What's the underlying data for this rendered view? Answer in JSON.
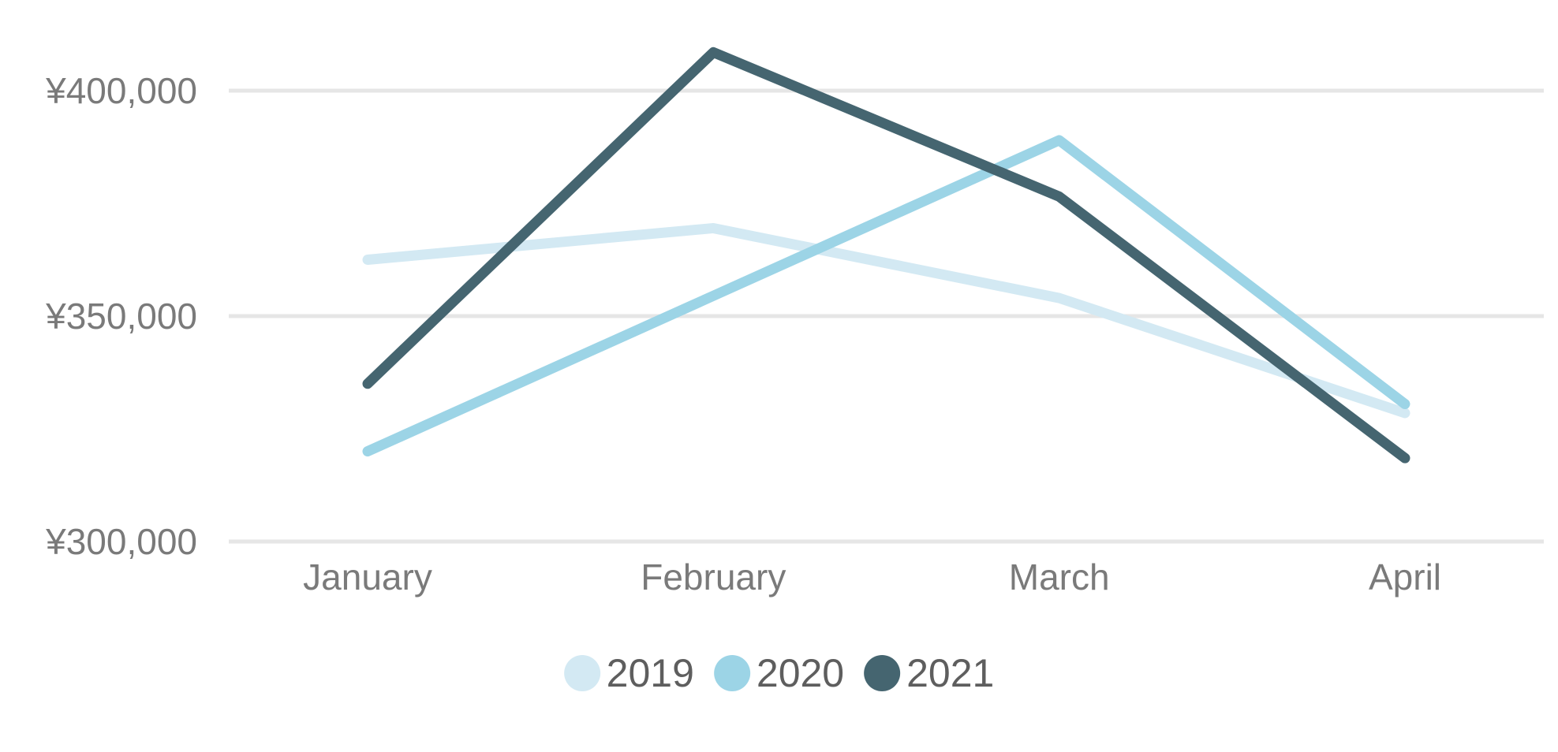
{
  "chart_data": {
    "type": "line",
    "title": "",
    "categories": [
      "January",
      "February",
      "March",
      "April"
    ],
    "series": [
      {
        "name": "2019",
        "color": "#D3E9F3",
        "values": [
          362500,
          369500,
          354000,
          328500
        ]
      },
      {
        "name": "2020",
        "color": "#9CD4E6",
        "values": [
          320000,
          354500,
          389000,
          330500
        ]
      },
      {
        "name": "2021",
        "color": "#456570",
        "values": [
          335000,
          408500,
          376500,
          318500
        ]
      }
    ],
    "y_axis": {
      "currency_symbol": "¥",
      "ticks": [
        {
          "label": "¥300,000",
          "value": 300000
        },
        {
          "label": "¥350,000",
          "value": 350000
        },
        {
          "label": "¥400,000",
          "value": 400000
        }
      ],
      "tick_min": 300000,
      "tick_max": 400000
    },
    "x_axis": {
      "labels": [
        "January",
        "February",
        "March",
        "April"
      ]
    },
    "legend": {
      "position": "bottom",
      "items": [
        {
          "label": "2019",
          "color": "#D3E9F3"
        },
        {
          "label": "2020",
          "color": "#9CD4E6"
        },
        {
          "label": "2021",
          "color": "#456570"
        }
      ]
    },
    "grid": "horizontal",
    "colors": {
      "gridline": "#e6e6e6",
      "axis_text": "#7a7a7a",
      "legend_text": "#5e5e5e",
      "background": "#ffffff"
    }
  }
}
